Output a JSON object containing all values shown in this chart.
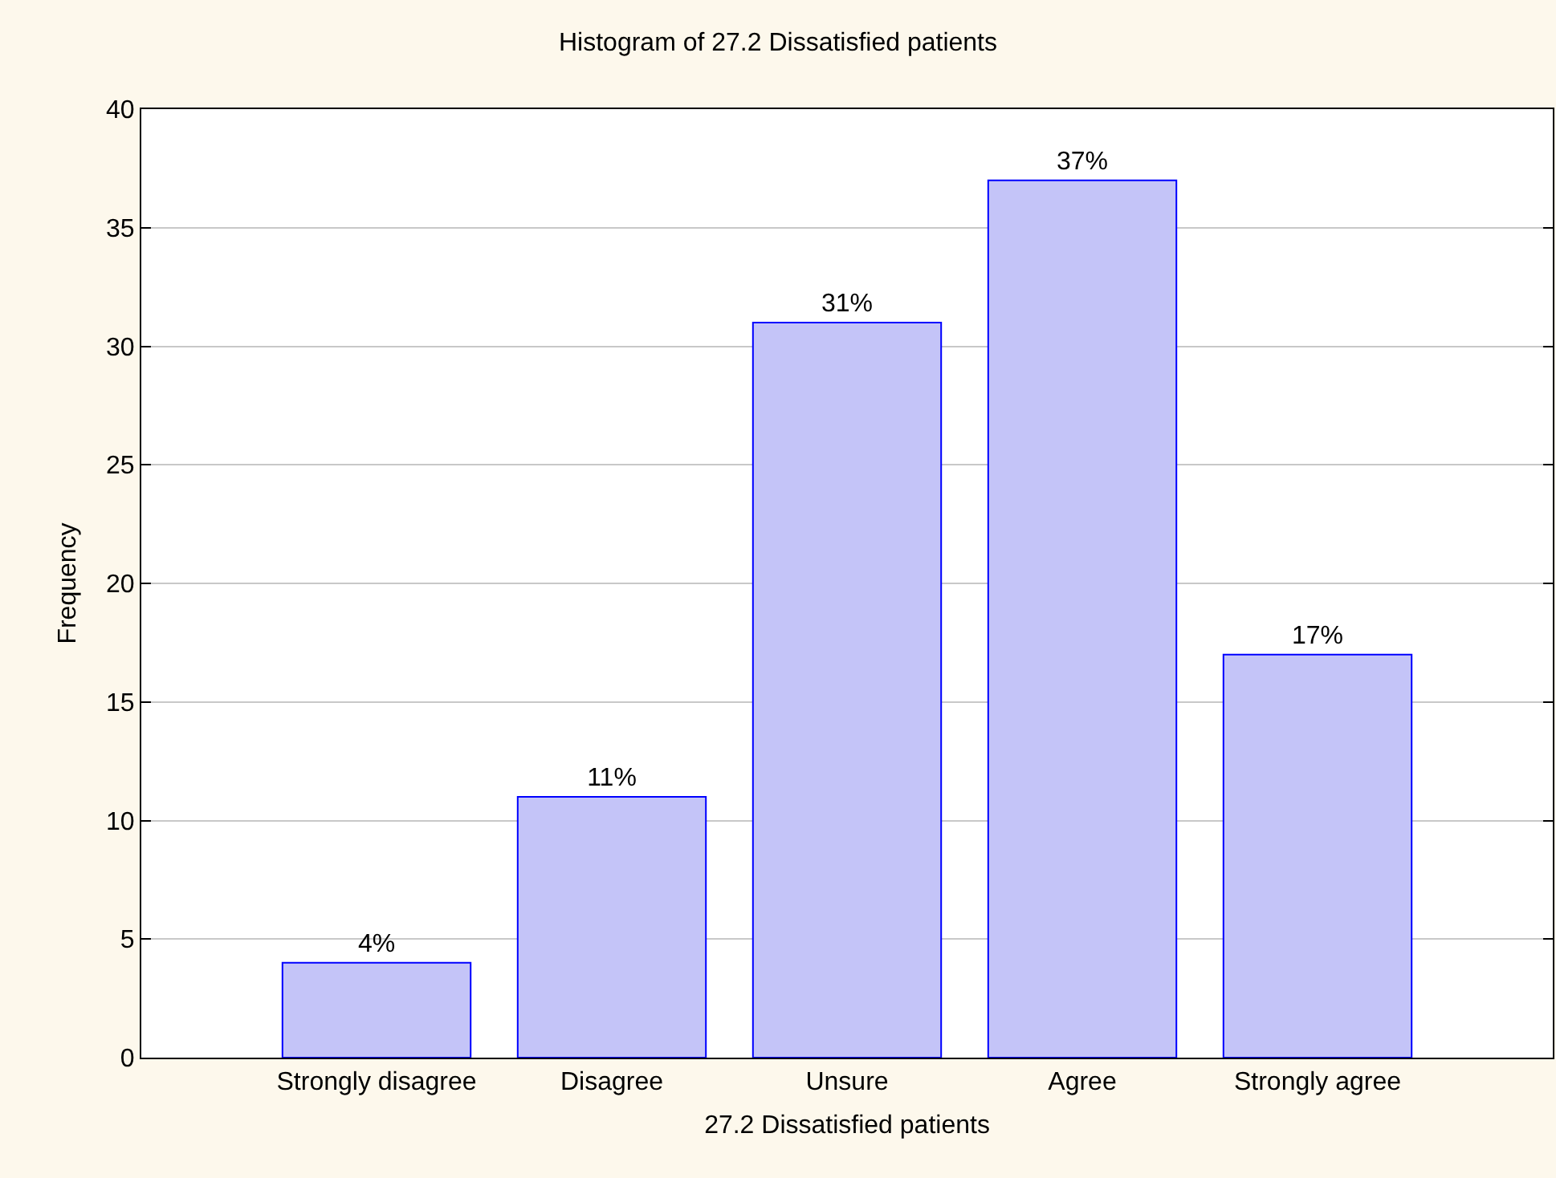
{
  "chart_data": {
    "type": "bar",
    "title": "Histogram of 27.2 Dissatisfied patients",
    "xlabel": "27.2 Dissatisfied patients",
    "ylabel": "Frequency",
    "categories": [
      "Strongly disagree",
      "Disagree",
      "Unsure",
      "Agree",
      "Strongly agree"
    ],
    "values": [
      4,
      11,
      31,
      37,
      17
    ],
    "value_labels": [
      "4%",
      "11%",
      "31%",
      "37%",
      "17%"
    ],
    "color": "#c4c4f8",
    "ylim": [
      0,
      40
    ],
    "yticks": [
      0,
      5,
      10,
      15,
      20,
      25,
      30,
      35,
      40
    ],
    "grid": "y"
  }
}
